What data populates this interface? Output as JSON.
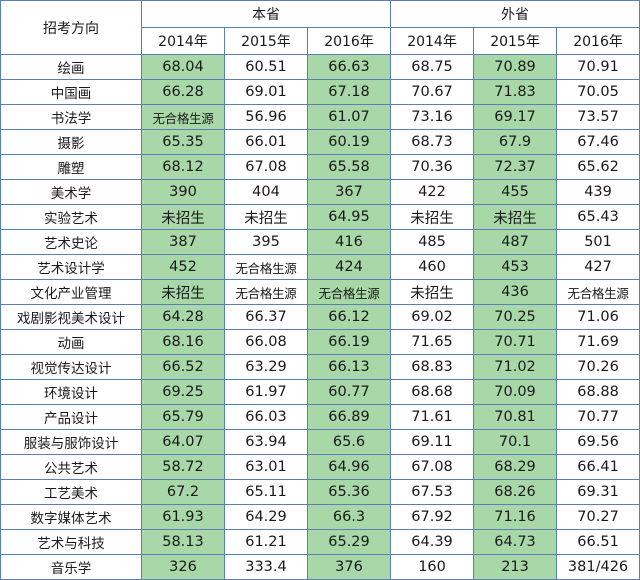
{
  "header": {
    "corner": "招考方向",
    "groups": [
      "本省",
      "外省"
    ],
    "years": [
      "2014年",
      "2015年",
      "2016年",
      "2014年",
      "2015年",
      "2016年"
    ]
  },
  "rows": [
    {
      "name": "绘画",
      "values": [
        "68.04",
        "60.51",
        "66.63",
        "68.75",
        "70.89",
        "70.91"
      ]
    },
    {
      "name": "中国画",
      "values": [
        "66.28",
        "69.01",
        "67.18",
        "70.67",
        "71.83",
        "70.05"
      ]
    },
    {
      "name": "书法学",
      "values": [
        "无合格生源",
        "56.96",
        "61.07",
        "73.16",
        "69.17",
        "73.57"
      ]
    },
    {
      "name": "摄影",
      "values": [
        "65.35",
        "66.01",
        "60.19",
        "68.73",
        "67.9",
        "67.46"
      ]
    },
    {
      "name": "雕塑",
      "values": [
        "68.12",
        "67.08",
        "65.58",
        "70.36",
        "72.37",
        "65.62"
      ]
    },
    {
      "name": "美术学",
      "values": [
        "390",
        "404",
        "367",
        "422",
        "455",
        "439"
      ]
    },
    {
      "name": "实验艺术",
      "values": [
        "未招生",
        "未招生",
        "64.95",
        "未招生",
        "未招生",
        "65.43"
      ]
    },
    {
      "name": "艺术史论",
      "values": [
        "387",
        "395",
        "416",
        "485",
        "487",
        "501"
      ]
    },
    {
      "name": "艺术设计学",
      "values": [
        "452",
        "无合格生源",
        "424",
        "460",
        "453",
        "427"
      ]
    },
    {
      "name": "文化产业管理",
      "values": [
        "未招生",
        "无合格生源",
        "无合格生源",
        "未招生",
        "436",
        "无合格生源"
      ]
    },
    {
      "name": "戏剧影视美术设计",
      "values": [
        "64.28",
        "66.37",
        "66.12",
        "69.02",
        "70.25",
        "71.06"
      ]
    },
    {
      "name": "动画",
      "values": [
        "68.16",
        "66.08",
        "66.19",
        "71.65",
        "70.71",
        "71.69"
      ]
    },
    {
      "name": "视觉传达设计",
      "values": [
        "66.52",
        "63.29",
        "66.13",
        "68.83",
        "71.02",
        "70.26"
      ]
    },
    {
      "name": "环境设计",
      "values": [
        "69.25",
        "61.97",
        "60.77",
        "68.68",
        "70.09",
        "68.88"
      ]
    },
    {
      "name": "产品设计",
      "values": [
        "65.79",
        "66.03",
        "66.89",
        "71.61",
        "70.81",
        "70.77"
      ]
    },
    {
      "name": "服装与服饰设计",
      "values": [
        "64.07",
        "63.94",
        "65.6",
        "69.11",
        "70.1",
        "69.56"
      ]
    },
    {
      "name": "公共艺术",
      "values": [
        "58.72",
        "63.01",
        "64.96",
        "67.08",
        "68.29",
        "66.41"
      ]
    },
    {
      "name": "工艺美术",
      "values": [
        "67.2",
        "65.11",
        "65.36",
        "67.53",
        "68.26",
        "69.31"
      ]
    },
    {
      "name": "数字媒体艺术",
      "values": [
        "61.93",
        "64.29",
        "66.3",
        "67.92",
        "71.16",
        "70.27"
      ]
    },
    {
      "name": "艺术与科技",
      "values": [
        "58.13",
        "61.21",
        "65.29",
        "64.39",
        "64.73",
        "66.51"
      ]
    },
    {
      "name": "音乐学",
      "values": [
        "326",
        "333.4",
        "376",
        "160",
        "213",
        "381/426"
      ]
    }
  ],
  "colors": {
    "highlight": "#a8d8a8",
    "border": "#5a7fb5"
  }
}
